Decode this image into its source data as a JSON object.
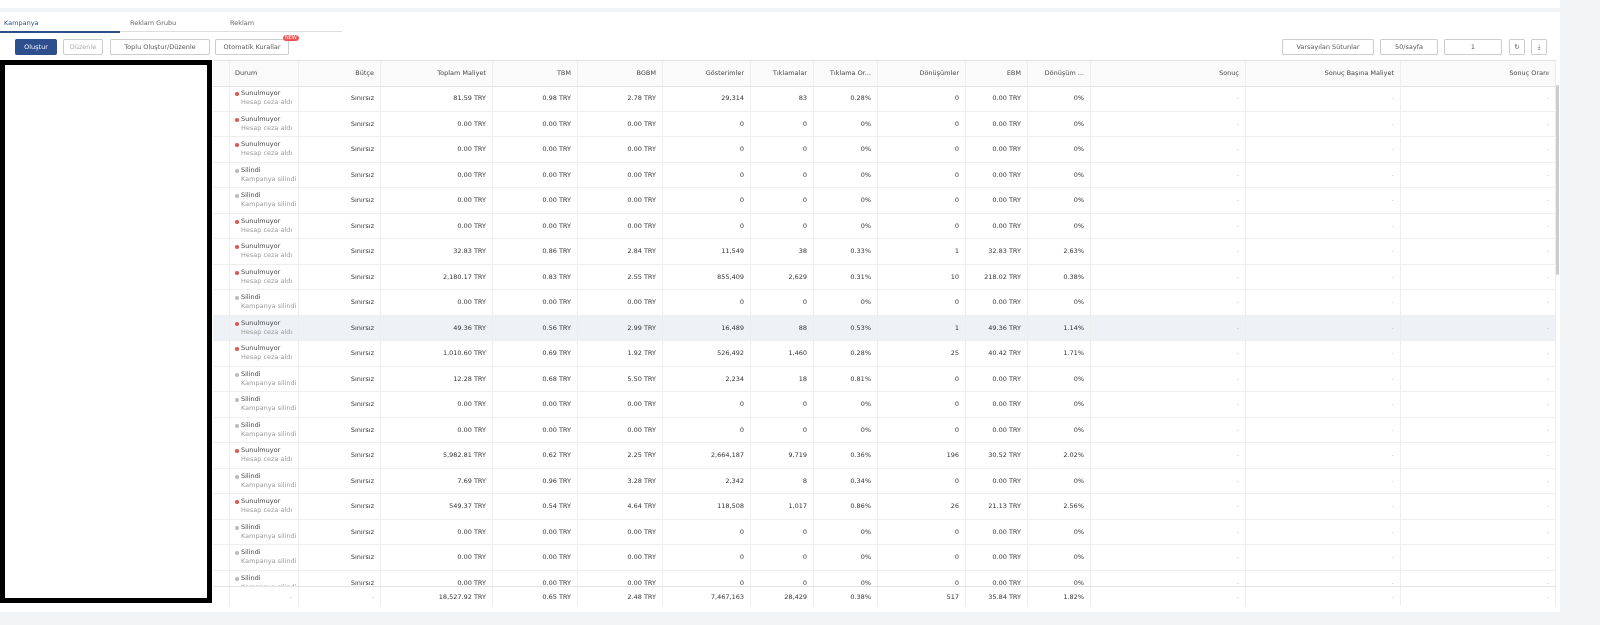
{
  "tabs": [
    "Kampanya",
    "Reklam Grubu",
    "Reklam"
  ],
  "toolbar": {
    "create": "Oluştur",
    "edit": "Düzenle",
    "bulk": "Toplu Oluştur/Düzenle",
    "rules": "Otomatik Kurallar",
    "badge": "NEW",
    "columns": "Varsayılan Sütunlar",
    "page_size": "50/sayfa",
    "page": "1"
  },
  "table": {
    "headers": [
      "Durum",
      "Bütçe",
      "Toplam Maliyet",
      "TBM",
      "BGBM",
      "Gösterimler",
      "Tıklamalar",
      "Tıklama Or...",
      "Dönüşümler",
      "EBM",
      "Dönüşüm ...",
      "Sonuç",
      "Sonuç Başına Maliyet",
      "Sonuç Oranı"
    ],
    "rows": [
      [
        "Sunulmuyor",
        "Hesap ceza aldı",
        "Sınırsız",
        "81.59 TRY",
        "0.98 TRY",
        "2.78 TRY",
        "29,314",
        "83",
        "0.28%",
        "0",
        "0.00 TRY",
        "0%",
        "-",
        "-",
        "-"
      ],
      [
        "Sunulmuyor",
        "Hesap ceza aldı",
        "Sınırsız",
        "0.00 TRY",
        "0.00 TRY",
        "0.00 TRY",
        "0",
        "0",
        "0%",
        "0",
        "0.00 TRY",
        "0%",
        "-",
        "-",
        "-"
      ],
      [
        "Sunulmuyor",
        "Hesap ceza aldı",
        "Sınırsız",
        "0.00 TRY",
        "0.00 TRY",
        "0.00 TRY",
        "0",
        "0",
        "0%",
        "0",
        "0.00 TRY",
        "0%",
        "-",
        "-",
        "-"
      ],
      [
        "Silindi",
        "Kampanya silindi",
        "Sınırsız",
        "0.00 TRY",
        "0.00 TRY",
        "0.00 TRY",
        "0",
        "0",
        "0%",
        "0",
        "0.00 TRY",
        "0%",
        "-",
        "-",
        "-"
      ],
      [
        "Silindi",
        "Kampanya silindi",
        "Sınırsız",
        "0.00 TRY",
        "0.00 TRY",
        "0.00 TRY",
        "0",
        "0",
        "0%",
        "0",
        "0.00 TRY",
        "0%",
        "-",
        "-",
        "-"
      ],
      [
        "Sunulmuyor",
        "Hesap ceza aldı",
        "Sınırsız",
        "0.00 TRY",
        "0.00 TRY",
        "0.00 TRY",
        "0",
        "0",
        "0%",
        "0",
        "0.00 TRY",
        "0%",
        "-",
        "-",
        "-"
      ],
      [
        "Sunulmuyor",
        "Hesap ceza aldı",
        "Sınırsız",
        "32.83 TRY",
        "0.86 TRY",
        "2.84 TRY",
        "11,549",
        "38",
        "0.33%",
        "1",
        "32.83 TRY",
        "2.63%",
        "-",
        "-",
        "-"
      ],
      [
        "Sunulmuyor",
        "Hesap ceza aldı",
        "Sınırsız",
        "2,180.17 TRY",
        "0.83 TRY",
        "2.55 TRY",
        "855,409",
        "2,629",
        "0.31%",
        "10",
        "218.02 TRY",
        "0.38%",
        "-",
        "-",
        "-"
      ],
      [
        "Silindi",
        "Kampanya silindi",
        "Sınırsız",
        "0.00 TRY",
        "0.00 TRY",
        "0.00 TRY",
        "0",
        "0",
        "0%",
        "0",
        "0.00 TRY",
        "0%",
        "-",
        "-",
        "-"
      ],
      [
        "Sunulmuyor",
        "Hesap ceza aldı",
        "Sınırsız",
        "49.36 TRY",
        "0.56 TRY",
        "2.99 TRY",
        "16,489",
        "88",
        "0.53%",
        "1",
        "49.36 TRY",
        "1.14%",
        "-",
        "-",
        "-"
      ],
      [
        "Sunulmuyor",
        "Hesap ceza aldı",
        "Sınırsız",
        "1,010.60 TRY",
        "0.69 TRY",
        "1.92 TRY",
        "526,492",
        "1,460",
        "0.28%",
        "25",
        "40.42 TRY",
        "1.71%",
        "-",
        "-",
        "-"
      ],
      [
        "Silindi",
        "Kampanya silindi",
        "Sınırsız",
        "12.28 TRY",
        "0.68 TRY",
        "5.50 TRY",
        "2,234",
        "18",
        "0.81%",
        "0",
        "0.00 TRY",
        "0%",
        "-",
        "-",
        "-"
      ],
      [
        "Silindi",
        "Kampanya silindi",
        "Sınırsız",
        "0.00 TRY",
        "0.00 TRY",
        "0.00 TRY",
        "0",
        "0",
        "0%",
        "0",
        "0.00 TRY",
        "0%",
        "-",
        "-",
        "-"
      ],
      [
        "Silindi",
        "Kampanya silindi",
        "Sınırsız",
        "0.00 TRY",
        "0.00 TRY",
        "0.00 TRY",
        "0",
        "0",
        "0%",
        "0",
        "0.00 TRY",
        "0%",
        "-",
        "-",
        "-"
      ],
      [
        "Sunulmuyor",
        "Hesap ceza aldı",
        "Sınırsız",
        "5,982.81 TRY",
        "0.62 TRY",
        "2.25 TRY",
        "2,664,187",
        "9,719",
        "0.36%",
        "196",
        "30.52 TRY",
        "2.02%",
        "-",
        "-",
        "-"
      ],
      [
        "Silindi",
        "Kampanya silindi",
        "Sınırsız",
        "7.69 TRY",
        "0.96 TRY",
        "3.28 TRY",
        "2,342",
        "8",
        "0.34%",
        "0",
        "0.00 TRY",
        "0%",
        "-",
        "-",
        "-"
      ],
      [
        "Sunulmuyor",
        "Hesap ceza aldı",
        "Sınırsız",
        "549.37 TRY",
        "0.54 TRY",
        "4.64 TRY",
        "118,508",
        "1,017",
        "0.86%",
        "26",
        "21.13 TRY",
        "2.56%",
        "-",
        "-",
        "-"
      ],
      [
        "Silindi",
        "Kampanya silindi",
        "Sınırsız",
        "0.00 TRY",
        "0.00 TRY",
        "0.00 TRY",
        "0",
        "0",
        "0%",
        "0",
        "0.00 TRY",
        "0%",
        "-",
        "-",
        "-"
      ],
      [
        "Silindi",
        "Kampanya silindi",
        "Sınırsız",
        "0.00 TRY",
        "0.00 TRY",
        "0.00 TRY",
        "0",
        "0",
        "0%",
        "0",
        "0.00 TRY",
        "0%",
        "-",
        "-",
        "-"
      ],
      [
        "Silindi",
        "Kampanya silindi",
        "Sınırsız",
        "0.00 TRY",
        "0.00 TRY",
        "0.00 TRY",
        "0",
        "0",
        "0%",
        "0",
        "0.00 TRY",
        "0%",
        "-",
        "-",
        "-"
      ]
    ],
    "footer": [
      "-",
      "-",
      "18,527.92 TRY",
      "0.65 TRY",
      "2.48 TRY",
      "7,467,163",
      "28,429",
      "0.38%",
      "517",
      "35.84 TRY",
      "1.82%",
      "-",
      "-",
      "-"
    ]
  }
}
